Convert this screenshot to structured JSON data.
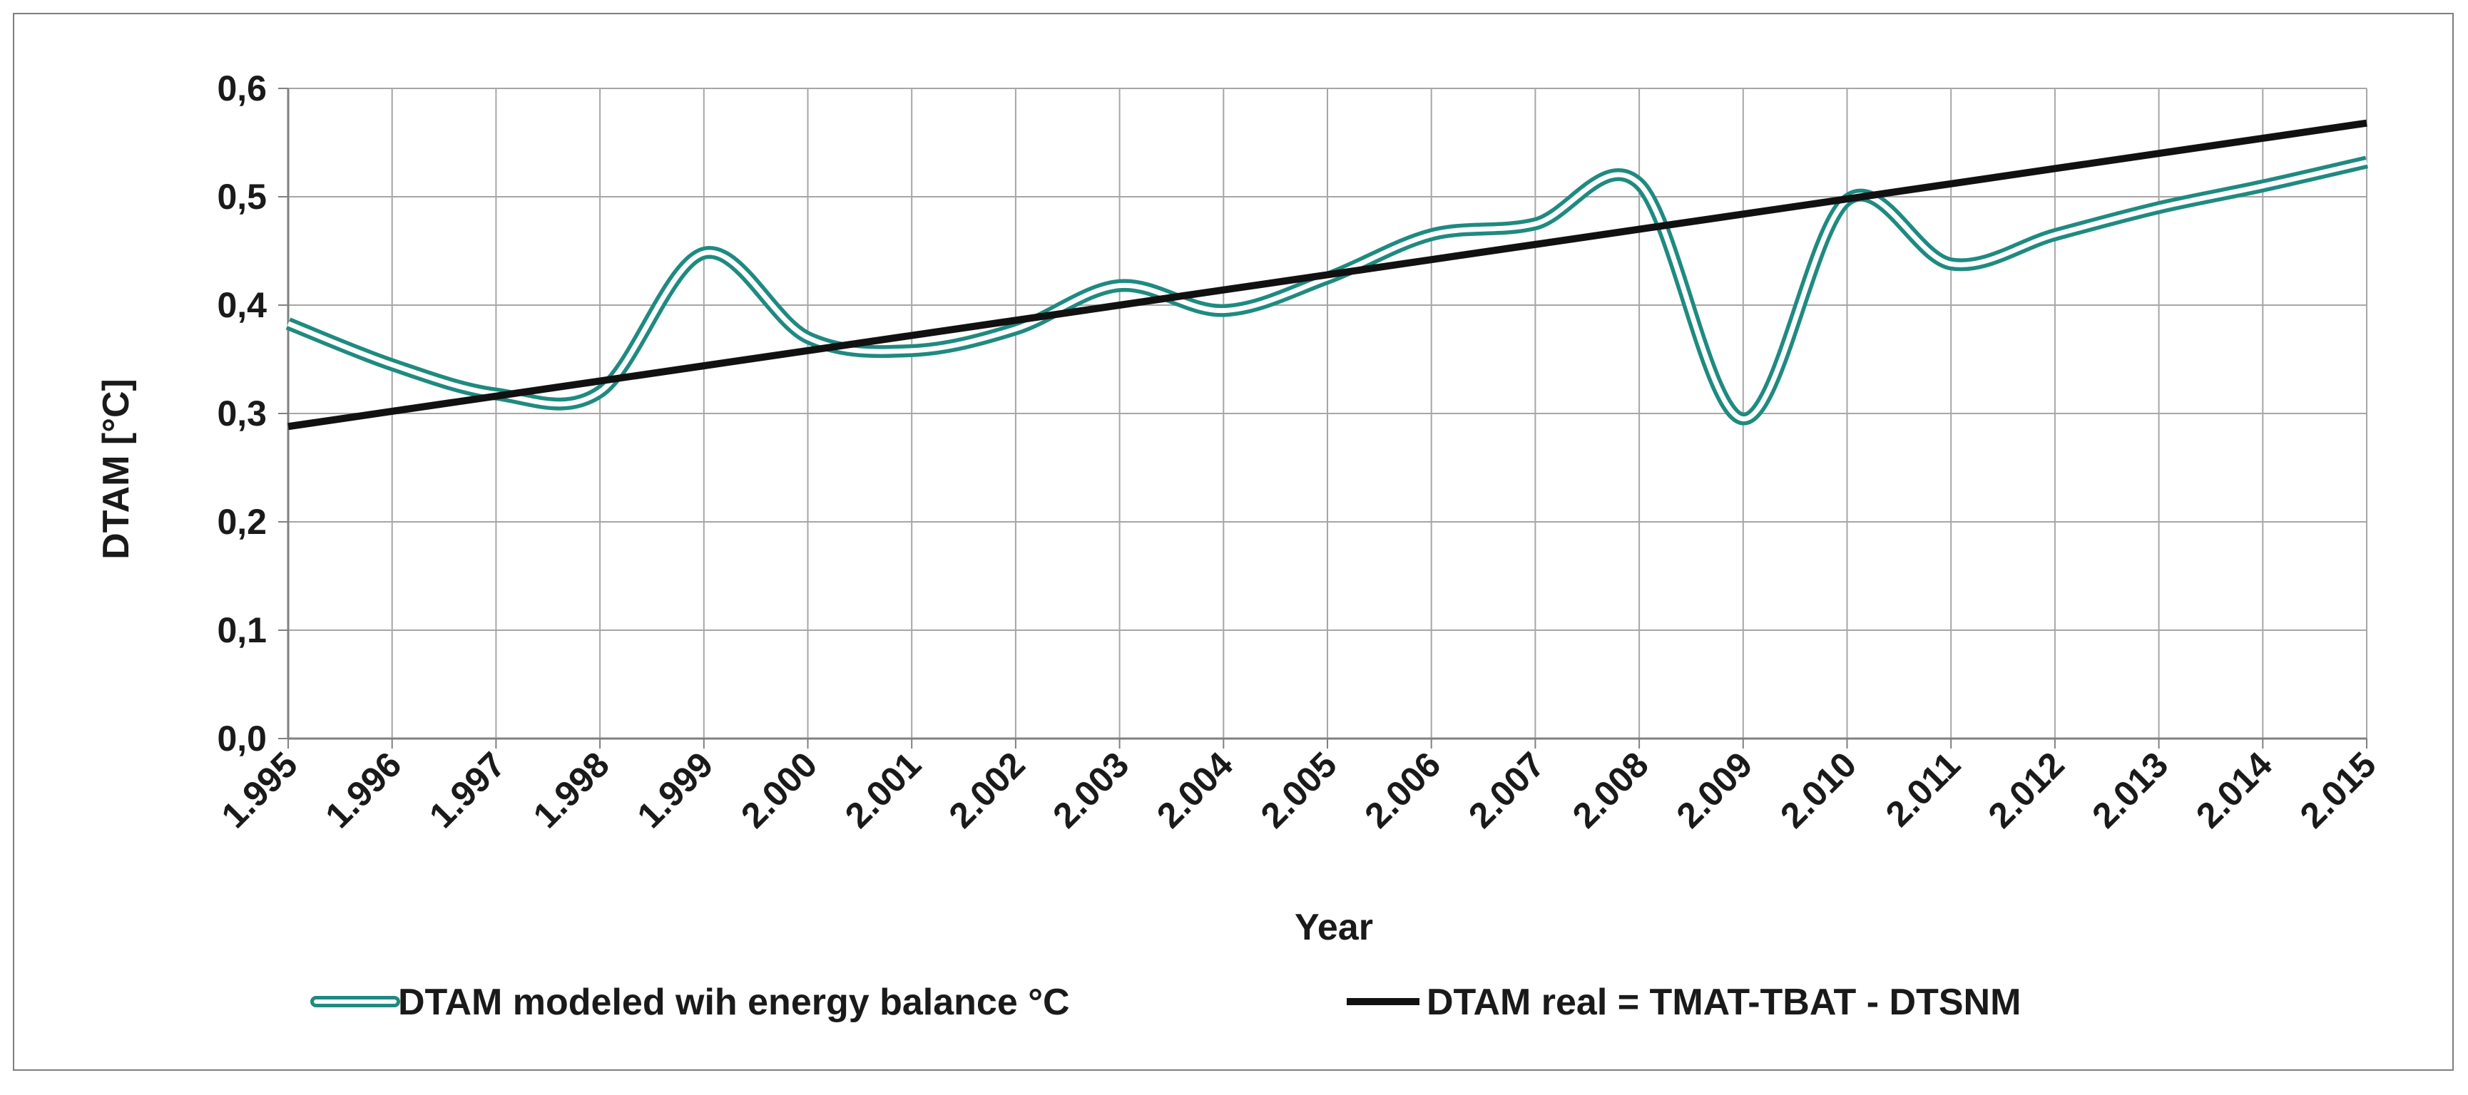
{
  "chart_data": {
    "type": "line",
    "title": "",
    "xlabel": "Year",
    "ylabel": "DTAM [°C]",
    "ylim": [
      0,
      0.6
    ],
    "y_ticks": [
      0.0,
      0.1,
      0.2,
      0.3,
      0.4,
      0.5,
      0.6
    ],
    "y_tick_labels": [
      "0,0",
      "0,1",
      "0,2",
      "0,3",
      "0,4",
      "0,5",
      "0,6"
    ],
    "x": [
      1995,
      1996,
      1997,
      1998,
      1999,
      2000,
      2001,
      2002,
      2003,
      2004,
      2005,
      2006,
      2007,
      2008,
      2009,
      2010,
      2011,
      2012,
      2013,
      2014,
      2015
    ],
    "categories": [
      "1.995",
      "1.996",
      "1.997",
      "1.998",
      "1.999",
      "2.000",
      "2.001",
      "2.002",
      "2.003",
      "2.004",
      "2.005",
      "2.006",
      "2.007",
      "2.008",
      "2.009",
      "2.010",
      "2.011",
      "2.012",
      "2.013",
      "2.014",
      "2.015"
    ],
    "grid": true,
    "legend_position": "bottom",
    "series": [
      {
        "name": "DTAM modeled wih energy balance °C",
        "style": "double-line",
        "color": "#1f8a80",
        "values": [
          0.383,
          0.345,
          0.318,
          0.32,
          0.448,
          0.37,
          0.358,
          0.378,
          0.418,
          0.395,
          0.425,
          0.465,
          0.475,
          0.512,
          0.295,
          0.497,
          0.438,
          0.465,
          0.49,
          0.51,
          0.532
        ]
      },
      {
        "name": "DTAM real = TMAT-TBAT - DTSNM",
        "style": "solid",
        "color": "#111111",
        "values": [
          0.288,
          0.302,
          0.316,
          0.33,
          0.344,
          0.358,
          0.372,
          0.386,
          0.4,
          0.414,
          0.428,
          0.442,
          0.456,
          0.47,
          0.484,
          0.498,
          0.512,
          0.526,
          0.54,
          0.554,
          0.568
        ]
      }
    ]
  }
}
